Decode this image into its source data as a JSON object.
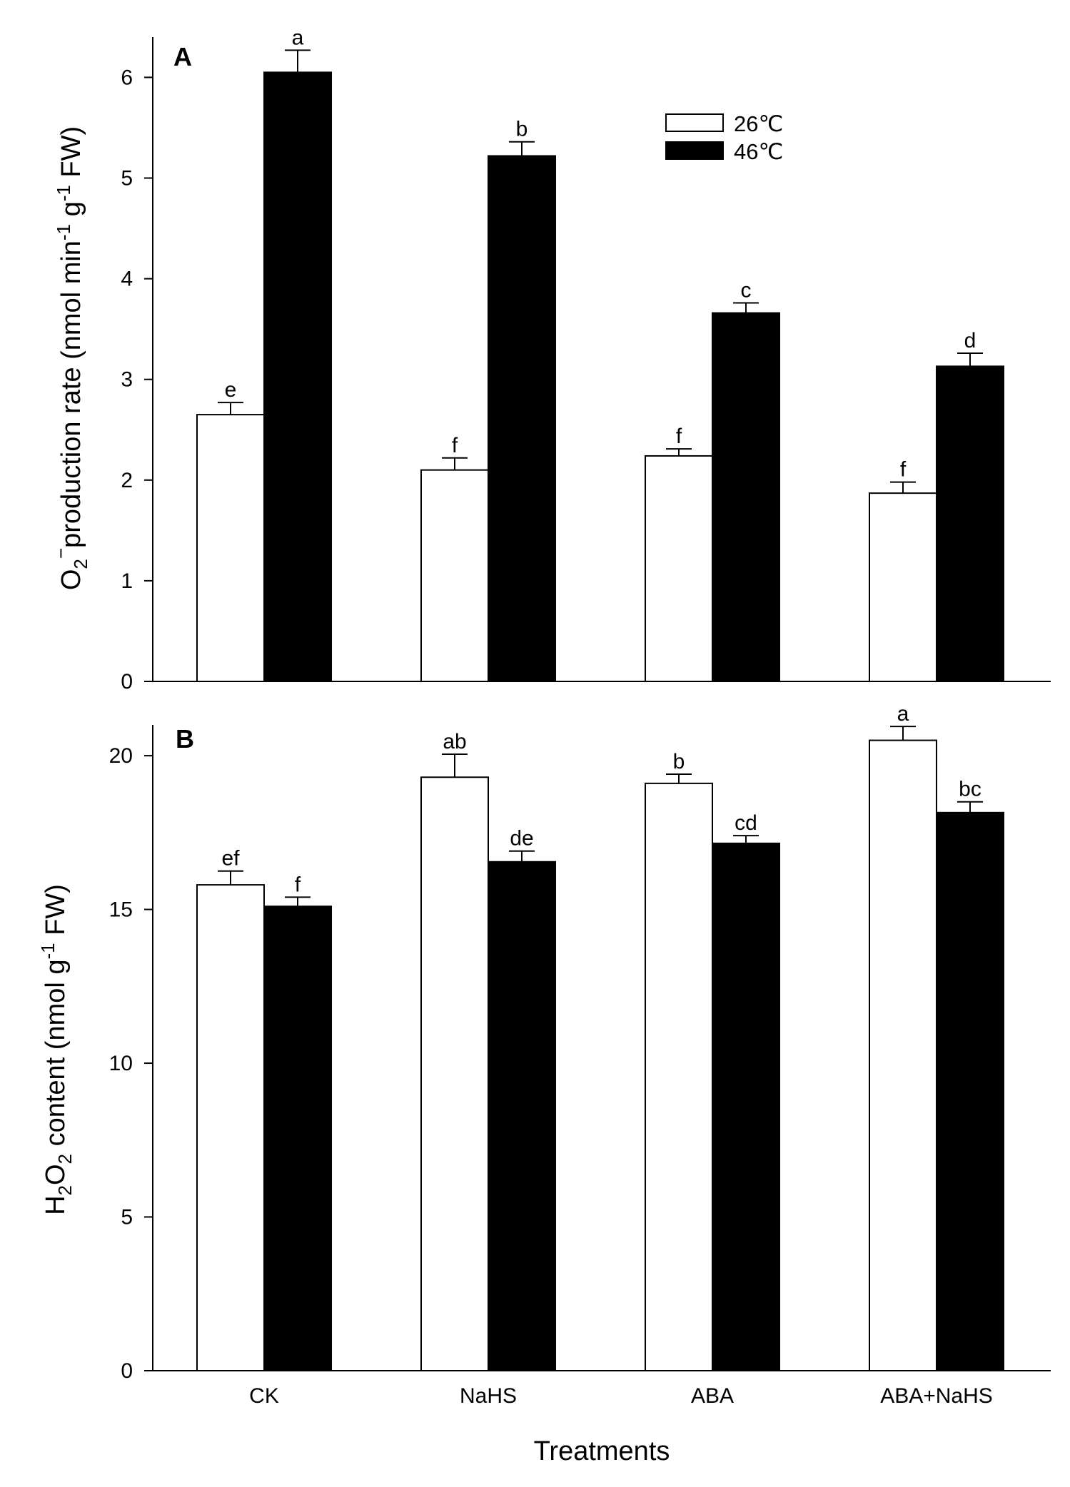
{
  "chart_data": [
    {
      "type": "bar",
      "panel_letter": "A",
      "ylabel_parts": [
        "O",
        "2",
        "−",
        "production rate (nmol min",
        "-1",
        " g",
        "-1",
        " FW)"
      ],
      "xlabel": "",
      "ylim": [
        0,
        6.4
      ],
      "yticks": [
        0,
        1,
        2,
        3,
        4,
        5,
        6
      ],
      "categories": [
        "CK",
        "NaHS",
        "ABA",
        "ABA+NaHS"
      ],
      "series": [
        {
          "name": "26℃",
          "color": "#ffffff",
          "values": [
            2.65,
            2.1,
            2.24,
            1.87
          ],
          "errors": [
            0.12,
            0.12,
            0.07,
            0.11
          ],
          "labels": [
            "e",
            "f",
            "f",
            "f"
          ]
        },
        {
          "name": "46℃",
          "color": "#000000",
          "values": [
            6.05,
            5.22,
            3.66,
            3.13
          ],
          "errors": [
            0.22,
            0.14,
            0.1,
            0.13
          ],
          "labels": [
            "a",
            "b",
            "c",
            "d"
          ]
        }
      ],
      "legend": {
        "position": "top-right",
        "entries": [
          "26℃",
          "46℃"
        ]
      }
    },
    {
      "type": "bar",
      "panel_letter": "B",
      "ylabel_parts": [
        "H",
        "2",
        "O",
        "2",
        " content (nmol g",
        "-1",
        " FW)"
      ],
      "xlabel": "Treatments",
      "ylim": [
        0,
        21
      ],
      "yticks": [
        0,
        5,
        10,
        15,
        20
      ],
      "categories": [
        "CK",
        "NaHS",
        "ABA",
        "ABA+NaHS"
      ],
      "series": [
        {
          "name": "26℃",
          "color": "#ffffff",
          "values": [
            15.8,
            19.3,
            19.1,
            20.5
          ],
          "errors": [
            0.45,
            0.75,
            0.3,
            0.45
          ],
          "labels": [
            "ef",
            "ab",
            "b",
            "a"
          ]
        },
        {
          "name": "46℃",
          "color": "#000000",
          "values": [
            15.1,
            16.55,
            17.15,
            18.15
          ],
          "errors": [
            0.3,
            0.35,
            0.25,
            0.35
          ],
          "labels": [
            "f",
            "de",
            "cd",
            "bc"
          ]
        }
      ]
    }
  ]
}
